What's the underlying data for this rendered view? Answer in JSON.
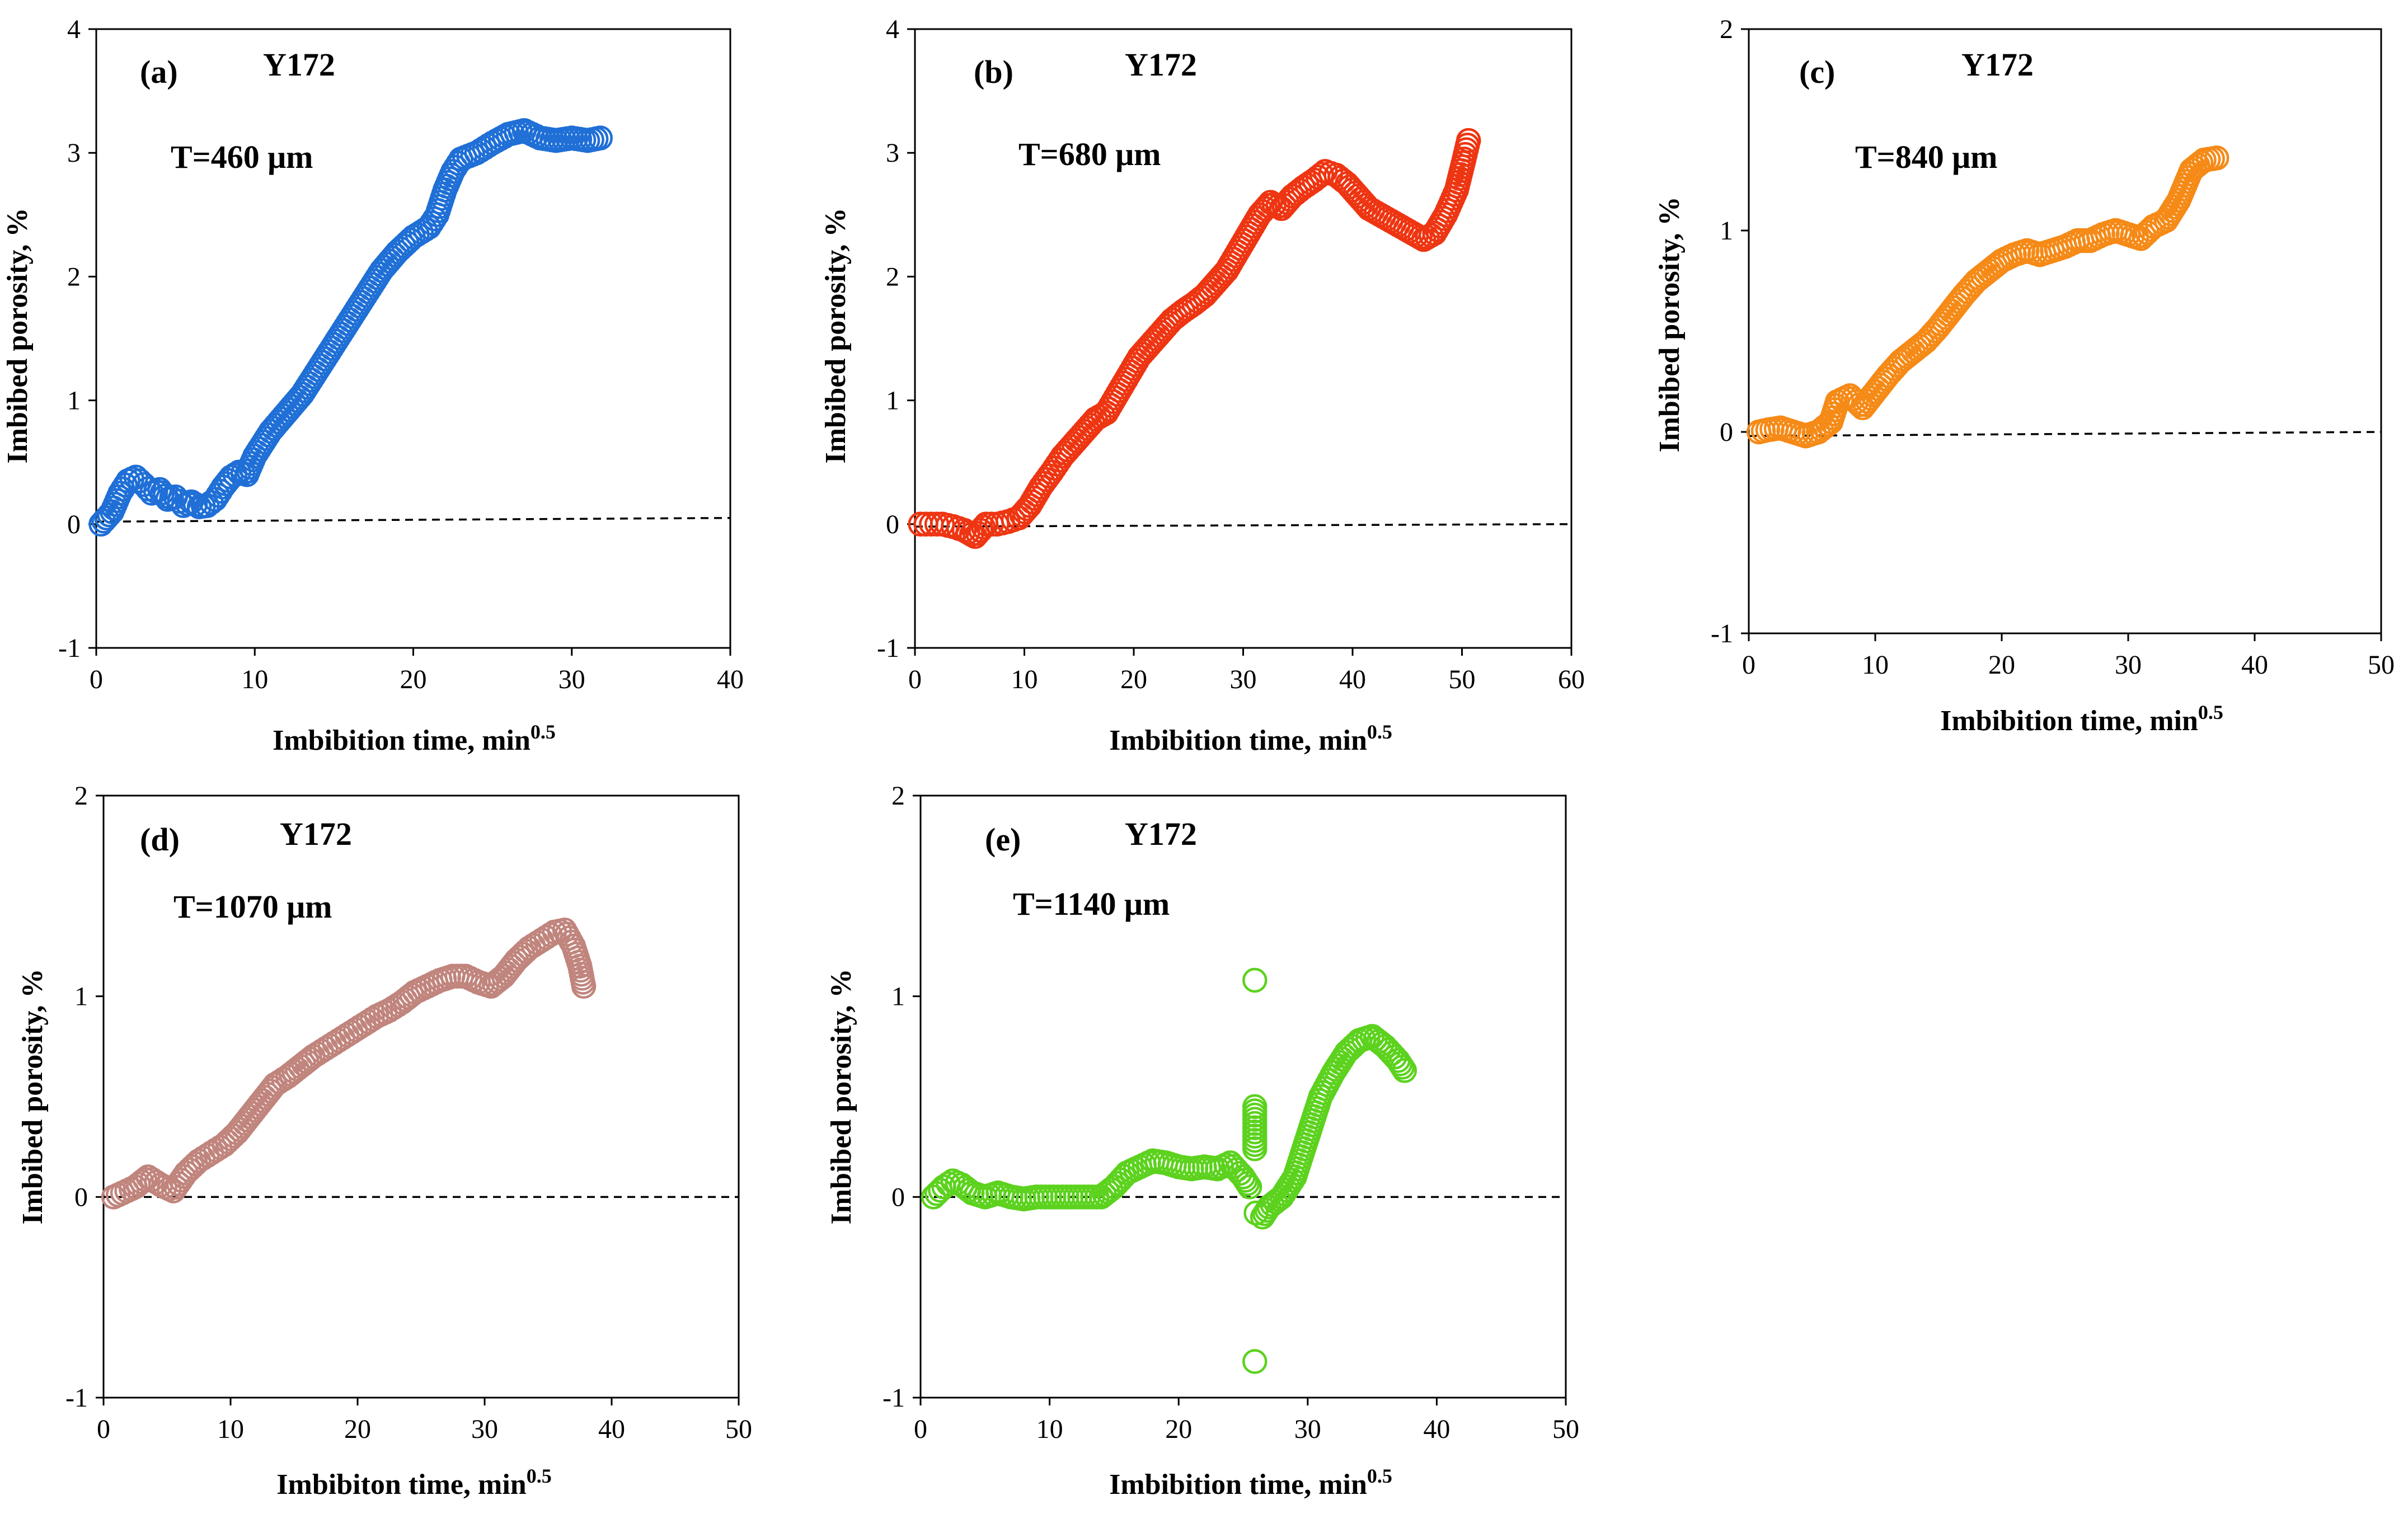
{
  "chart_data": [
    {
      "type": "scatter",
      "panel_label": "(a)",
      "sample": "Y172",
      "annotation": "T=460 μm",
      "xlabel": "Imbibition time, min",
      "xlabel_sup": "0.5",
      "ylabel": "Imbibed porosity, %",
      "xlim": [
        0,
        40
      ],
      "ylim": [
        -1,
        4
      ],
      "xticks": [
        0,
        10,
        20,
        30,
        40
      ],
      "yticks": [
        -1,
        0,
        1,
        2,
        3,
        4
      ],
      "color": "#1f6fd6",
      "baseline": [
        [
          0,
          0.02
        ],
        [
          40,
          0.05
        ]
      ],
      "series": [
        {
          "name": "T=460 μm",
          "points": [
            [
              0.3,
              0.0
            ],
            [
              1.0,
              0.1
            ],
            [
              1.5,
              0.25
            ],
            [
              2.0,
              0.35
            ],
            [
              2.5,
              0.38
            ],
            [
              3.0,
              0.32
            ],
            [
              3.5,
              0.25
            ],
            [
              4.0,
              0.28
            ],
            [
              4.5,
              0.2
            ],
            [
              5.0,
              0.22
            ],
            [
              5.5,
              0.15
            ],
            [
              6.0,
              0.18
            ],
            [
              6.5,
              0.14
            ],
            [
              7.0,
              0.15
            ],
            [
              7.5,
              0.2
            ],
            [
              8.0,
              0.3
            ],
            [
              8.5,
              0.38
            ],
            [
              9.0,
              0.42
            ],
            [
              9.5,
              0.4
            ],
            [
              10.0,
              0.55
            ],
            [
              11.0,
              0.75
            ],
            [
              12.0,
              0.9
            ],
            [
              13.0,
              1.05
            ],
            [
              14.0,
              1.25
            ],
            [
              15.0,
              1.45
            ],
            [
              16.0,
              1.65
            ],
            [
              17.0,
              1.85
            ],
            [
              18.0,
              2.05
            ],
            [
              19.0,
              2.2
            ],
            [
              20.0,
              2.32
            ],
            [
              21.0,
              2.4
            ],
            [
              21.5,
              2.5
            ],
            [
              22.0,
              2.7
            ],
            [
              22.5,
              2.85
            ],
            [
              23.0,
              2.95
            ],
            [
              24.0,
              3.0
            ],
            [
              25.0,
              3.08
            ],
            [
              26.0,
              3.15
            ],
            [
              27.0,
              3.18
            ],
            [
              28.0,
              3.12
            ],
            [
              29.0,
              3.1
            ],
            [
              30.0,
              3.12
            ],
            [
              31.0,
              3.1
            ],
            [
              31.8,
              3.12
            ]
          ]
        }
      ]
    },
    {
      "type": "scatter",
      "panel_label": "(b)",
      "sample": "Y172",
      "annotation": "T=680 μm",
      "xlabel": "Imbibition time, min",
      "xlabel_sup": "0.5",
      "ylabel": "Imbibed porosity, %",
      "xlim": [
        0,
        60
      ],
      "ylim": [
        -1,
        4
      ],
      "xticks": [
        0,
        10,
        20,
        30,
        40,
        50,
        60
      ],
      "yticks": [
        -1,
        0,
        1,
        2,
        3,
        4
      ],
      "color": "#ee3512",
      "baseline": [
        [
          0,
          -0.02
        ],
        [
          60,
          0.0
        ]
      ],
      "series": [
        {
          "name": "T=680 μm",
          "points": [
            [
              0.5,
              0.0
            ],
            [
              1.5,
              0.0
            ],
            [
              2.5,
              0.0
            ],
            [
              3.5,
              -0.02
            ],
            [
              4.5,
              -0.05
            ],
            [
              5.5,
              -0.1
            ],
            [
              6.5,
              0.0
            ],
            [
              7.5,
              0.0
            ],
            [
              8.5,
              0.02
            ],
            [
              9.5,
              0.05
            ],
            [
              10.5,
              0.15
            ],
            [
              11.5,
              0.3
            ],
            [
              12.5,
              0.42
            ],
            [
              13.5,
              0.55
            ],
            [
              14.5,
              0.65
            ],
            [
              15.5,
              0.75
            ],
            [
              16.5,
              0.85
            ],
            [
              17.5,
              0.9
            ],
            [
              18.5,
              1.05
            ],
            [
              19.5,
              1.2
            ],
            [
              20.5,
              1.35
            ],
            [
              21.5,
              1.45
            ],
            [
              22.5,
              1.55
            ],
            [
              23.5,
              1.65
            ],
            [
              24.5,
              1.72
            ],
            [
              25.5,
              1.78
            ],
            [
              26.5,
              1.85
            ],
            [
              27.5,
              1.95
            ],
            [
              28.5,
              2.05
            ],
            [
              29.5,
              2.2
            ],
            [
              30.5,
              2.35
            ],
            [
              31.5,
              2.5
            ],
            [
              32.5,
              2.6
            ],
            [
              33.5,
              2.55
            ],
            [
              34.5,
              2.65
            ],
            [
              35.5,
              2.72
            ],
            [
              36.5,
              2.78
            ],
            [
              37.5,
              2.85
            ],
            [
              38.5,
              2.82
            ],
            [
              39.5,
              2.75
            ],
            [
              40.5,
              2.65
            ],
            [
              41.5,
              2.55
            ],
            [
              42.5,
              2.5
            ],
            [
              43.5,
              2.45
            ],
            [
              44.5,
              2.4
            ],
            [
              45.5,
              2.35
            ],
            [
              46.5,
              2.3
            ],
            [
              47.5,
              2.35
            ],
            [
              48.5,
              2.5
            ],
            [
              49.5,
              2.7
            ],
            [
              50.2,
              2.95
            ],
            [
              50.6,
              3.1
            ]
          ]
        }
      ]
    },
    {
      "type": "scatter",
      "panel_label": "(c)",
      "sample": "Y172",
      "annotation": "T=840 μm",
      "xlabel": "Imbibition time, min",
      "xlabel_sup": "0.5",
      "ylabel": "Imbibed porosity, %",
      "xlim": [
        0,
        50
      ],
      "ylim": [
        -1,
        2
      ],
      "xticks": [
        0,
        10,
        20,
        30,
        40,
        50
      ],
      "yticks": [
        -1,
        0,
        1,
        2
      ],
      "color": "#f58a17",
      "baseline": [
        [
          0,
          -0.02
        ],
        [
          50,
          0.0
        ]
      ],
      "series": [
        {
          "name": "T=840 μm",
          "points": [
            [
              0.8,
              0.0
            ],
            [
              1.5,
              0.01
            ],
            [
              2.5,
              0.02
            ],
            [
              3.5,
              0.0
            ],
            [
              4.5,
              -0.02
            ],
            [
              5.5,
              0.0
            ],
            [
              6.5,
              0.05
            ],
            [
              7.0,
              0.15
            ],
            [
              8.0,
              0.18
            ],
            [
              9.0,
              0.12
            ],
            [
              10.0,
              0.2
            ],
            [
              11.0,
              0.28
            ],
            [
              12.0,
              0.35
            ],
            [
              13.0,
              0.4
            ],
            [
              14.0,
              0.45
            ],
            [
              15.0,
              0.52
            ],
            [
              16.0,
              0.6
            ],
            [
              17.0,
              0.68
            ],
            [
              18.0,
              0.75
            ],
            [
              19.0,
              0.8
            ],
            [
              20.0,
              0.85
            ],
            [
              21.0,
              0.88
            ],
            [
              22.0,
              0.9
            ],
            [
              23.0,
              0.88
            ],
            [
              24.0,
              0.9
            ],
            [
              25.0,
              0.92
            ],
            [
              26.0,
              0.95
            ],
            [
              27.0,
              0.95
            ],
            [
              28.0,
              0.98
            ],
            [
              29.0,
              1.0
            ],
            [
              30.0,
              0.98
            ],
            [
              31.0,
              0.96
            ],
            [
              32.0,
              1.02
            ],
            [
              33.0,
              1.05
            ],
            [
              34.0,
              1.15
            ],
            [
              35.0,
              1.3
            ],
            [
              36.0,
              1.35
            ],
            [
              37.0,
              1.36
            ]
          ]
        }
      ]
    },
    {
      "type": "scatter",
      "panel_label": "(d)",
      "sample": "Y172",
      "annotation": "T=1070 μm",
      "xlabel": "Imbibiton time, min",
      "xlabel_sup": "0.5",
      "ylabel": "Imbibed porosity, %",
      "xlim": [
        0,
        50
      ],
      "ylim": [
        -1,
        2
      ],
      "xticks": [
        0,
        10,
        20,
        30,
        40,
        50
      ],
      "yticks": [
        -1,
        0,
        1,
        2
      ],
      "color": "#c0857d",
      "baseline": [
        [
          0,
          0.0
        ],
        [
          50,
          0.0
        ]
      ],
      "series": [
        {
          "name": "T=1070 μm",
          "points": [
            [
              0.8,
              0.0
            ],
            [
              1.5,
              0.02
            ],
            [
              2.5,
              0.05
            ],
            [
              3.5,
              0.1
            ],
            [
              4.5,
              0.06
            ],
            [
              5.5,
              0.03
            ],
            [
              6.5,
              0.12
            ],
            [
              7.5,
              0.18
            ],
            [
              8.5,
              0.22
            ],
            [
              9.5,
              0.26
            ],
            [
              10.5,
              0.32
            ],
            [
              11.5,
              0.4
            ],
            [
              12.5,
              0.48
            ],
            [
              13.5,
              0.56
            ],
            [
              14.5,
              0.6
            ],
            [
              15.5,
              0.65
            ],
            [
              16.5,
              0.7
            ],
            [
              17.5,
              0.74
            ],
            [
              18.5,
              0.78
            ],
            [
              19.5,
              0.82
            ],
            [
              20.5,
              0.86
            ],
            [
              21.5,
              0.9
            ],
            [
              22.5,
              0.93
            ],
            [
              23.5,
              0.97
            ],
            [
              24.5,
              1.02
            ],
            [
              25.5,
              1.05
            ],
            [
              26.5,
              1.08
            ],
            [
              27.5,
              1.1
            ],
            [
              28.5,
              1.1
            ],
            [
              29.5,
              1.07
            ],
            [
              30.5,
              1.05
            ],
            [
              31.5,
              1.1
            ],
            [
              32.5,
              1.18
            ],
            [
              33.5,
              1.24
            ],
            [
              34.5,
              1.28
            ],
            [
              35.5,
              1.32
            ],
            [
              36.3,
              1.33
            ],
            [
              37.0,
              1.25
            ],
            [
              37.5,
              1.15
            ],
            [
              37.8,
              1.05
            ]
          ]
        }
      ]
    },
    {
      "type": "scatter",
      "panel_label": "(e)",
      "sample": "Y172",
      "annotation": "T=1140 μm",
      "xlabel": "Imbibition time, min",
      "xlabel_sup": "0.5",
      "ylabel": "Imbibed porosity, %",
      "xlim": [
        0,
        50
      ],
      "ylim": [
        -1,
        2
      ],
      "xticks": [
        0,
        10,
        20,
        30,
        40,
        50
      ],
      "yticks": [
        -1,
        0,
        1,
        2
      ],
      "color": "#5cd21e",
      "baseline": [
        [
          0,
          0.0
        ],
        [
          50,
          0.0
        ]
      ],
      "series": [
        {
          "name": "T=1140 μm",
          "points": [
            [
              1.0,
              0.0
            ],
            [
              1.8,
              0.05
            ],
            [
              2.5,
              0.08
            ],
            [
              3.2,
              0.06
            ],
            [
              4.0,
              0.02
            ],
            [
              5.0,
              0.0
            ],
            [
              6.0,
              0.02
            ],
            [
              7.0,
              0.0
            ],
            [
              8.0,
              -0.01
            ],
            [
              9.0,
              0.0
            ],
            [
              10.0,
              0.0
            ],
            [
              11.0,
              0.0
            ],
            [
              12.0,
              0.0
            ],
            [
              13.0,
              0.0
            ],
            [
              14.0,
              0.0
            ],
            [
              15.0,
              0.05
            ],
            [
              16.0,
              0.12
            ],
            [
              17.0,
              0.15
            ],
            [
              18.0,
              0.18
            ],
            [
              19.0,
              0.17
            ],
            [
              20.0,
              0.15
            ],
            [
              21.0,
              0.14
            ],
            [
              22.0,
              0.15
            ],
            [
              23.0,
              0.14
            ],
            [
              24.0,
              0.17
            ],
            [
              25.0,
              0.1
            ],
            [
              25.5,
              0.05
            ],
            [
              25.9,
              1.08
            ],
            [
              25.9,
              0.45
            ],
            [
              25.9,
              0.24
            ],
            [
              25.9,
              -0.82
            ],
            [
              26.0,
              -0.08
            ],
            [
              26.5,
              -0.1
            ],
            [
              27.0,
              -0.05
            ],
            [
              28.0,
              0.0
            ],
            [
              29.0,
              0.1
            ],
            [
              30.0,
              0.3
            ],
            [
              31.0,
              0.5
            ],
            [
              32.0,
              0.62
            ],
            [
              33.0,
              0.72
            ],
            [
              34.0,
              0.78
            ],
            [
              35.0,
              0.8
            ],
            [
              36.0,
              0.75
            ],
            [
              37.0,
              0.68
            ],
            [
              37.5,
              0.63
            ]
          ]
        }
      ]
    }
  ]
}
